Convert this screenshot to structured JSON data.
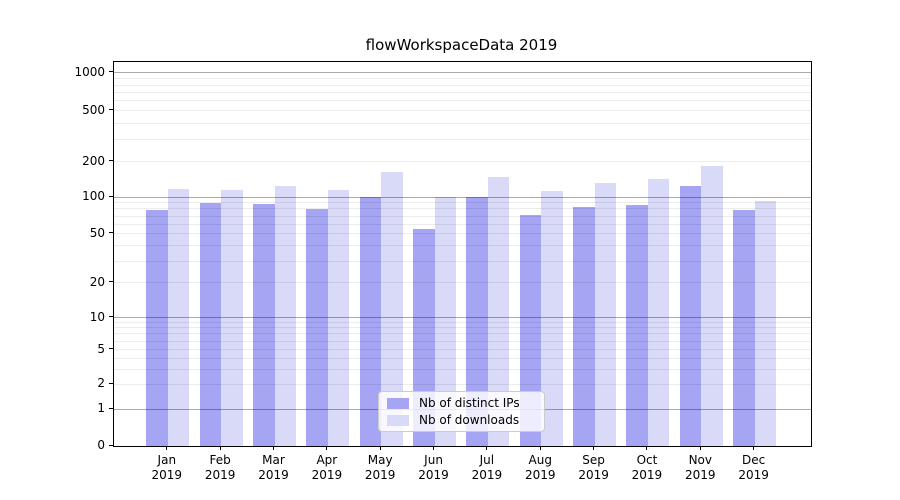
{
  "chart_data": {
    "type": "bar",
    "title": "flowWorkspaceData 2019",
    "x_axis": {
      "categories": [
        "Jan",
        "Feb",
        "Mar",
        "Apr",
        "May",
        "Jun",
        "Jul",
        "Aug",
        "Sep",
        "Oct",
        "Nov",
        "Dec"
      ],
      "year_label": "2019"
    },
    "y_axis": {
      "scale": "symlog",
      "tick_labels": [
        "0",
        "1",
        "2",
        "5",
        "10",
        "20",
        "50",
        "100",
        "200",
        "500",
        "1000"
      ],
      "tick_values": [
        0,
        1,
        2,
        5,
        10,
        20,
        50,
        100,
        200,
        500,
        1000
      ],
      "major_grid_values": [
        1,
        10,
        100,
        1000
      ],
      "minor_grid_values": [
        2,
        3,
        4,
        5,
        6,
        7,
        8,
        9,
        20,
        30,
        40,
        50,
        60,
        70,
        80,
        90,
        200,
        300,
        400,
        500,
        600,
        700,
        800,
        900
      ],
      "ylim": [
        0,
        1230
      ],
      "scale_anchors": [
        [
          0,
          1.0
        ],
        [
          1,
          0.9049
        ],
        [
          2,
          0.8398
        ],
        [
          5,
          0.7487
        ],
        [
          10,
          0.6654
        ],
        [
          20,
          0.5755
        ],
        [
          50,
          0.4479
        ],
        [
          100,
          0.3516
        ],
        [
          200,
          0.2604
        ],
        [
          500,
          0.1276
        ],
        [
          1000,
          0.0286
        ]
      ]
    },
    "series": [
      {
        "name": "Nb of distinct IPs",
        "color": "#a5a5f3",
        "values": [
          78,
          90,
          87,
          80,
          100,
          55,
          100,
          72,
          83,
          86,
          125,
          79
        ]
      },
      {
        "name": "Nb of downloads",
        "color": "#d9d9f8",
        "values": [
          117,
          114,
          124,
          115,
          165,
          100,
          149,
          113,
          131,
          142,
          186,
          92
        ]
      }
    ],
    "grid": true,
    "legend": {
      "position": "lower center",
      "items": [
        {
          "label": "Nb of distinct IPs",
          "color": "#a5a5f3"
        },
        {
          "label": "Nb of downloads",
          "color": "#d9d9f8"
        }
      ]
    },
    "colors": {
      "major_grid": "#aaaaaa",
      "minor_grid": "#ececec",
      "spine": "#000000",
      "background": "#ffffff"
    }
  }
}
